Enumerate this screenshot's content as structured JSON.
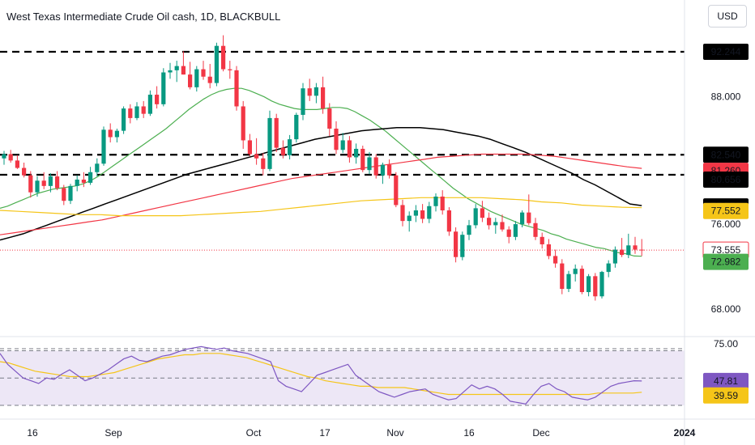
{
  "title": "West Texas Intermediate Crude Oil cash, 1D, BLACKBULL",
  "currency": "USD",
  "colors": {
    "up": "#089981",
    "down": "#f23645",
    "sma_green": "#4caf50",
    "sma_black": "#000000",
    "sma_red": "#f23645",
    "sma_yellow": "#f5c518",
    "rsi_line": "#7e57c2",
    "rsi_ma": "#f5c518",
    "rsi_band": "#ede7f6"
  },
  "chart_data": [
    {
      "type": "candlestick",
      "title": "West Texas Intermediate Crude Oil cash, 1D, BLACKBULL",
      "x_tick_labels": [
        "16",
        "Sep",
        "Oct",
        "17",
        "Nov",
        "16",
        "Dec",
        "2024"
      ],
      "y_tick_labels": [
        "92.244",
        "88.000",
        "82.540",
        "81.260",
        "80.656",
        "77.753",
        "77.552",
        "76.000",
        "73.555",
        "72.982",
        "68.000"
      ],
      "ylim": [
        66.5,
        94.5
      ],
      "ohlc": [
        [
          82.2,
          82.9,
          81.6,
          82.6
        ],
        [
          82.6,
          83.0,
          81.8,
          82.0
        ],
        [
          82.0,
          82.5,
          81.2,
          81.3
        ],
        [
          81.3,
          81.8,
          80.4,
          80.6
        ],
        [
          80.6,
          81.0,
          78.5,
          79.0
        ],
        [
          79.0,
          80.5,
          78.6,
          80.1
        ],
        [
          80.1,
          80.9,
          79.3,
          79.6
        ],
        [
          79.6,
          80.8,
          79.0,
          80.5
        ],
        [
          80.5,
          81.0,
          79.2,
          79.4
        ],
        [
          79.4,
          79.7,
          77.8,
          78.2
        ],
        [
          78.2,
          79.8,
          77.9,
          79.6
        ],
        [
          79.6,
          80.6,
          79.1,
          80.2
        ],
        [
          80.2,
          80.9,
          79.5,
          79.9
        ],
        [
          79.9,
          81.4,
          79.7,
          80.9
        ],
        [
          80.9,
          82.2,
          80.5,
          81.7
        ],
        [
          81.7,
          85.2,
          81.5,
          84.9
        ],
        [
          84.9,
          85.5,
          83.7,
          84.2
        ],
        [
          84.2,
          85.0,
          83.7,
          84.8
        ],
        [
          84.8,
          87.1,
          84.5,
          86.9
        ],
        [
          86.9,
          87.3,
          85.5,
          86.0
        ],
        [
          86.0,
          87.5,
          85.8,
          87.1
        ],
        [
          87.1,
          87.6,
          86.0,
          86.4
        ],
        [
          86.4,
          88.6,
          86.2,
          88.2
        ],
        [
          88.2,
          89.0,
          86.9,
          87.3
        ],
        [
          87.3,
          90.7,
          87.1,
          90.3
        ],
        [
          90.3,
          91.2,
          89.7,
          90.5
        ],
        [
          90.5,
          91.4,
          89.4,
          90.9
        ],
        [
          90.9,
          92.3,
          90.1,
          90.1
        ],
        [
          90.1,
          91.3,
          88.7,
          88.9
        ],
        [
          88.9,
          90.9,
          88.5,
          90.6
        ],
        [
          90.6,
          91.4,
          89.6,
          89.9
        ],
        [
          89.9,
          91.1,
          88.8,
          89.3
        ],
        [
          89.3,
          93.1,
          89.0,
          92.8
        ],
        [
          92.8,
          93.8,
          90.4,
          90.6
        ],
        [
          90.6,
          91.4,
          89.7,
          90.5
        ],
        [
          90.5,
          90.9,
          86.7,
          87.1
        ],
        [
          87.1,
          87.6,
          83.1,
          83.9
        ],
        [
          83.9,
          84.5,
          82.4,
          82.6
        ],
        [
          82.6,
          84.1,
          81.6,
          82.2
        ],
        [
          82.2,
          82.7,
          80.6,
          81.2
        ],
        [
          81.2,
          86.7,
          81.0,
          86.0
        ],
        [
          86.0,
          86.4,
          82.8,
          83.2
        ],
        [
          83.2,
          83.9,
          82.2,
          82.5
        ],
        [
          82.5,
          84.4,
          82.1,
          84.0
        ],
        [
          84.0,
          86.5,
          83.7,
          86.3
        ],
        [
          86.3,
          89.3,
          85.8,
          88.8
        ],
        [
          88.8,
          89.7,
          87.6,
          88.1
        ],
        [
          88.1,
          89.3,
          87.4,
          88.9
        ],
        [
          88.9,
          89.9,
          86.4,
          86.9
        ],
        [
          86.9,
          87.4,
          84.3,
          85.0
        ],
        [
          85.0,
          85.7,
          82.6,
          83.0
        ],
        [
          83.0,
          84.6,
          82.7,
          83.9
        ],
        [
          83.9,
          84.3,
          81.8,
          82.3
        ],
        [
          82.3,
          83.6,
          81.7,
          83.1
        ],
        [
          83.1,
          83.4,
          80.9,
          81.1
        ],
        [
          81.1,
          82.8,
          80.7,
          82.3
        ],
        [
          82.3,
          82.6,
          80.3,
          80.6
        ],
        [
          80.6,
          81.8,
          79.8,
          81.6
        ],
        [
          81.6,
          82.1,
          80.3,
          80.6
        ],
        [
          80.6,
          80.9,
          77.6,
          77.8
        ],
        [
          77.8,
          78.3,
          75.8,
          76.3
        ],
        [
          76.3,
          77.2,
          75.3,
          76.8
        ],
        [
          76.8,
          77.8,
          76.2,
          77.3
        ],
        [
          77.3,
          77.9,
          76.1,
          76.5
        ],
        [
          76.5,
          78.1,
          76.1,
          77.7
        ],
        [
          77.7,
          78.9,
          77.2,
          78.6
        ],
        [
          78.6,
          79.2,
          76.9,
          77.3
        ],
        [
          77.3,
          77.6,
          74.9,
          75.3
        ],
        [
          75.3,
          75.7,
          72.4,
          72.9
        ],
        [
          72.9,
          75.3,
          72.6,
          75.0
        ],
        [
          75.0,
          76.4,
          74.5,
          75.9
        ],
        [
          75.9,
          77.9,
          75.6,
          77.5
        ],
        [
          77.5,
          78.2,
          76.2,
          76.6
        ],
        [
          76.6,
          77.1,
          75.5,
          75.9
        ],
        [
          75.9,
          76.6,
          75.1,
          76.2
        ],
        [
          76.2,
          76.9,
          75.3,
          75.5
        ],
        [
          75.5,
          75.8,
          74.2,
          74.8
        ],
        [
          74.8,
          76.3,
          74.5,
          76.0
        ],
        [
          76.0,
          77.3,
          75.7,
          77.1
        ],
        [
          77.1,
          78.8,
          75.9,
          76.1
        ],
        [
          76.1,
          76.6,
          74.5,
          74.8
        ],
        [
          74.8,
          75.2,
          73.7,
          74.1
        ],
        [
          74.1,
          74.6,
          72.7,
          73.0
        ],
        [
          73.0,
          73.6,
          71.9,
          72.3
        ],
        [
          72.3,
          72.7,
          69.4,
          69.9
        ],
        [
          69.9,
          71.6,
          69.6,
          71.3
        ],
        [
          71.3,
          72.2,
          70.6,
          71.8
        ],
        [
          71.8,
          72.1,
          69.4,
          69.6
        ],
        [
          69.6,
          71.3,
          69.2,
          71.1
        ],
        [
          71.1,
          71.4,
          68.8,
          69.2
        ],
        [
          69.2,
          71.6,
          69.0,
          71.5
        ],
        [
          71.5,
          72.6,
          71.0,
          72.3
        ],
        [
          72.3,
          73.9,
          71.9,
          73.6
        ],
        [
          73.6,
          74.7,
          72.9,
          73.1
        ],
        [
          73.1,
          75.1,
          72.8,
          74.0
        ],
        [
          74.0,
          74.8,
          73.2,
          73.6
        ],
        [
          73.6,
          74.6,
          73.0,
          73.555
        ]
      ],
      "moving_averages": [
        {
          "color": "green",
          "values": [
            77.5,
            77.7,
            78.0,
            78.3,
            78.6,
            78.9,
            79.1,
            79.3,
            79.4,
            79.5,
            79.6,
            79.8,
            80.1,
            80.5,
            81.0,
            81.5,
            82.0,
            82.5,
            83.0,
            83.5,
            84.0,
            84.5,
            85.0,
            85.6,
            86.2,
            86.8,
            87.3,
            87.8,
            88.2,
            88.5,
            88.7,
            88.8,
            88.8,
            88.6,
            88.3,
            88.0,
            87.6,
            87.3,
            87.1,
            86.9,
            86.8,
            86.8,
            86.8,
            86.9,
            87.0,
            87.0,
            86.9,
            86.6,
            86.2,
            85.8,
            85.3,
            84.8,
            84.2,
            83.6,
            83.0,
            82.4,
            81.8,
            81.2,
            80.6,
            80.0,
            79.4,
            78.9,
            78.4,
            78.0,
            77.6,
            77.2,
            76.9,
            76.6,
            76.3,
            76.0,
            75.8,
            75.6,
            75.4,
            75.1,
            74.9,
            74.6,
            74.4,
            74.2,
            74.0,
            73.8,
            73.7,
            73.5,
            73.3,
            73.2,
            73.0,
            72.982
          ]
        },
        {
          "color": "black",
          "values": [
            74.5,
            74.8,
            75.1,
            75.5,
            75.9,
            76.3,
            76.7,
            77.1,
            77.5,
            77.9,
            78.3,
            78.7,
            79.1,
            79.5,
            79.9,
            80.3,
            80.7,
            81.0,
            81.3,
            81.6,
            81.9,
            82.2,
            82.5,
            82.8,
            83.1,
            83.4,
            83.7,
            84.0,
            84.2,
            84.4,
            84.6,
            84.8,
            84.9,
            85.0,
            85.1,
            85.1,
            85.1,
            85.0,
            84.9,
            84.7,
            84.5,
            84.3,
            84.0,
            83.6,
            83.2,
            82.8,
            82.3,
            81.8,
            81.3,
            80.8,
            80.2,
            79.7,
            79.1,
            78.5,
            77.9,
            77.753
          ]
        },
        {
          "color": "red",
          "values": [
            75.0,
            75.2,
            75.4,
            75.6,
            75.8,
            76.0,
            76.2,
            76.4,
            76.7,
            77.0,
            77.3,
            77.6,
            77.9,
            78.2,
            78.5,
            78.8,
            79.1,
            79.4,
            79.7,
            80.0,
            80.3,
            80.5,
            80.7,
            80.9,
            81.1,
            81.3,
            81.5,
            81.7,
            81.9,
            82.1,
            82.3,
            82.4,
            82.5,
            82.6,
            82.6,
            82.6,
            82.6,
            82.5,
            82.4,
            82.2,
            82.0,
            81.8,
            81.6,
            81.4,
            81.26
          ]
        },
        {
          "color": "yellow",
          "values": [
            77.3,
            77.2,
            77.1,
            77.0,
            76.9,
            76.9,
            76.8,
            76.8,
            76.8,
            76.8,
            76.9,
            77.0,
            77.1,
            77.2,
            77.4,
            77.6,
            77.8,
            78.0,
            78.2,
            78.3,
            78.4,
            78.5,
            78.5,
            78.5,
            78.5,
            78.4,
            78.3,
            78.1,
            78.0,
            77.8,
            77.7,
            77.6,
            77.552
          ]
        }
      ],
      "price_levels": [
        {
          "value": 92.244,
          "label": "92.244",
          "style": "dashed",
          "badge_bg": "#000000",
          "badge_fg": "#ffffff"
        },
        {
          "value": 82.54,
          "label": "82.540",
          "style": "dashed",
          "badge_bg": "#000000",
          "badge_fg": "#ffffff"
        },
        {
          "value": 80.656,
          "label": "80.656",
          "style": "dashed",
          "badge_bg": "#000000",
          "badge_fg": "#ffffff"
        }
      ],
      "badges": [
        {
          "value": 81.26,
          "label": "81.260",
          "bg": "#f23645",
          "fg": "#ffffff"
        },
        {
          "value": 77.753,
          "label": "77.753",
          "bg": "#000000",
          "fg": "#ffffff"
        },
        {
          "value": 77.552,
          "label": "77.552",
          "bg": "#f5c518",
          "fg": "#131722"
        },
        {
          "value": 73.555,
          "label": "73.555",
          "bg": "#ffffff",
          "fg": "#f23645",
          "border": "#f23645"
        },
        {
          "value": 72.982,
          "label": "72.982",
          "bg": "#4caf50",
          "fg": "#ffffff"
        }
      ]
    },
    {
      "type": "line",
      "indicator": "RSI",
      "y_tick_labels": [
        "75.00"
      ],
      "ylim": [
        18,
        78
      ],
      "band": [
        30,
        70
      ],
      "rsi": [
        68,
        60,
        55,
        50,
        48,
        46,
        50,
        49,
        53,
        56,
        52,
        48,
        50,
        53,
        56,
        60,
        64,
        66,
        63,
        62,
        64,
        66,
        67,
        69,
        71,
        72,
        73,
        72,
        71,
        72,
        70,
        69,
        68,
        66,
        64,
        62,
        48,
        44,
        42,
        40,
        46,
        52,
        54,
        56,
        58,
        60,
        52,
        48,
        44,
        40,
        38,
        36,
        38,
        40,
        41,
        42,
        38,
        36,
        34,
        35,
        40,
        45,
        42,
        44,
        42,
        38,
        33,
        32,
        31,
        38,
        44,
        46,
        42,
        40,
        36,
        35,
        34,
        36,
        40,
        44,
        46,
        47,
        48,
        47.81
      ],
      "rsi_ma": [
        62,
        61,
        59,
        57,
        55,
        54,
        53,
        52,
        51,
        51,
        51,
        52,
        53,
        54,
        56,
        58,
        60,
        62,
        64,
        65,
        66,
        67,
        67,
        68,
        68,
        68,
        67,
        66,
        65,
        63,
        61,
        59,
        57,
        55,
        53,
        51,
        50,
        48,
        47,
        46,
        45,
        44,
        44,
        43,
        43,
        43,
        43,
        42,
        41,
        40,
        39,
        38,
        38,
        38,
        38,
        38,
        38,
        38,
        38,
        38,
        38,
        38,
        38,
        38,
        38,
        38,
        38,
        38,
        39,
        39,
        39,
        39,
        39,
        39.59
      ],
      "badges": [
        {
          "value": 47.81,
          "label": "47.81",
          "bg": "#7e57c2",
          "fg": "#ffffff"
        },
        {
          "value": 39.59,
          "label": "39.59",
          "bg": "#f5c518",
          "fg": "#131722"
        }
      ]
    }
  ]
}
